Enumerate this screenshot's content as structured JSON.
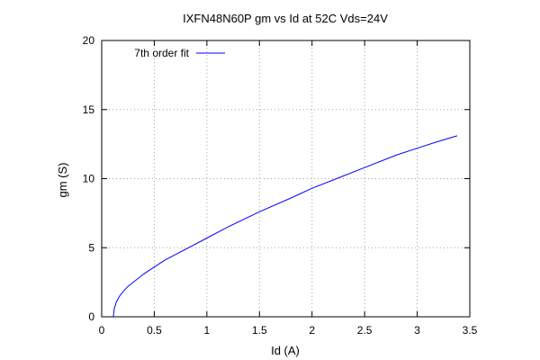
{
  "chart_data": {
    "type": "line",
    "title": "IXFN48N60P gm vs Id at 52C Vds=24V",
    "xlabel": "Id (A)",
    "ylabel": "gm (S)",
    "xlim": [
      0,
      3.5
    ],
    "ylim": [
      0,
      20
    ],
    "xticks": [
      0,
      0.5,
      1,
      1.5,
      2,
      2.5,
      3,
      3.5
    ],
    "yticks": [
      0,
      5,
      10,
      15,
      20
    ],
    "xtick_labels": [
      "0",
      "0.5",
      "1",
      "1.5",
      "2",
      "2.5",
      "3",
      "3.5"
    ],
    "ytick_labels": [
      "0",
      "5",
      "10",
      "15",
      "20"
    ],
    "grid": true,
    "legend_position": "top-left",
    "series": [
      {
        "name": "7th order fit",
        "color": "#0000ff",
        "x": [
          0.11,
          0.12,
          0.14,
          0.17,
          0.2,
          0.25,
          0.3,
          0.4,
          0.5,
          0.6,
          0.8,
          1.0,
          1.2,
          1.5,
          1.8,
          2.0,
          2.2,
          2.5,
          2.8,
          3.0,
          3.2,
          3.38
        ],
        "y": [
          0.0,
          0.6,
          1.1,
          1.5,
          1.8,
          2.2,
          2.5,
          3.1,
          3.6,
          4.1,
          4.9,
          5.7,
          6.5,
          7.6,
          8.6,
          9.3,
          9.9,
          10.8,
          11.7,
          12.2,
          12.7,
          13.1
        ]
      }
    ]
  }
}
